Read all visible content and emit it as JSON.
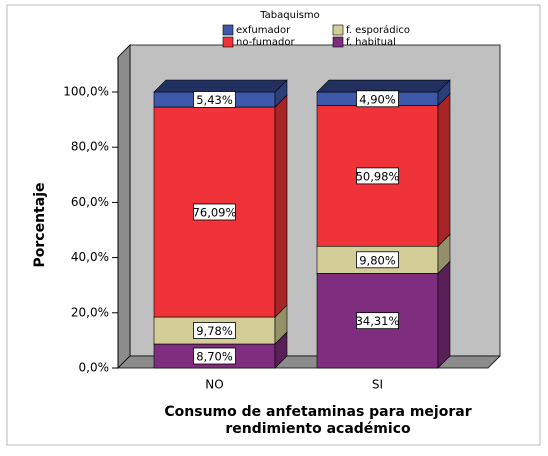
{
  "chart_data": {
    "type": "bar3d_stacked",
    "legend_title": "Tabaquismo",
    "categories": [
      "NO",
      "SI"
    ],
    "series": [
      {
        "name": "f. habitual",
        "color": "#7f2d7f",
        "values": [
          8.7,
          34.31
        ],
        "value_labels": [
          "8,70%",
          "34,31%"
        ]
      },
      {
        "name": "f. esporádico",
        "color": "#d3ce97",
        "values": [
          9.78,
          9.8
        ],
        "value_labels": [
          "9,78%",
          "9,80%"
        ]
      },
      {
        "name": "no-fumador",
        "color": "#ef3338",
        "values": [
          76.09,
          50.98
        ],
        "value_labels": [
          "76,09%",
          "50,98%"
        ]
      },
      {
        "name": "exfumador",
        "color": "#3e58ac",
        "values": [
          5.43,
          4.9
        ],
        "value_labels": [
          "5,43%",
          "4,90%"
        ]
      }
    ],
    "ylabel": "Porcentaje",
    "xlabel": [
      "Consumo de anfetaminas para mejorar",
      "rendimiento académico"
    ],
    "ylim": [
      0,
      100
    ],
    "yticks": [
      {
        "value": 0,
        "label": "0,0%"
      },
      {
        "value": 20,
        "label": "20,0%"
      },
      {
        "value": 40,
        "label": "40,0%"
      },
      {
        "value": 60,
        "label": "60,0%"
      },
      {
        "value": 80,
        "label": "80,0%"
      },
      {
        "value": 100,
        "label": "100,0%"
      }
    ]
  }
}
